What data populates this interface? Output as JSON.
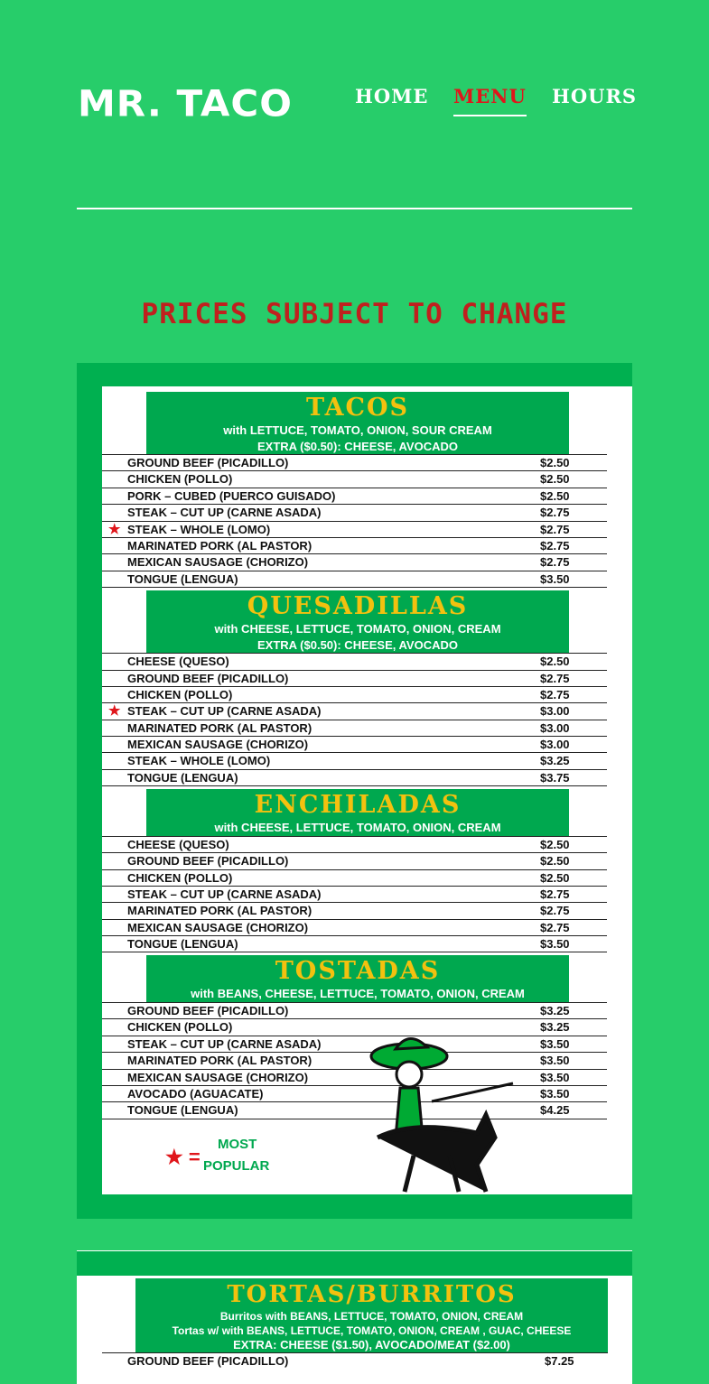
{
  "header": {
    "logo": "MR. TACO",
    "nav": [
      {
        "label": "HOME"
      },
      {
        "label": "MENU",
        "active": true
      },
      {
        "label": "HOURS"
      }
    ]
  },
  "notice": "PRICES SUBJECT TO CHANGE",
  "colors": {
    "background": "#27cd6a",
    "panel": "#00b050",
    "accent_red": "#c0201e",
    "title_yellow": "#f3c10f"
  },
  "menu": [
    {
      "title": "TACOS",
      "notes": [
        "with LETTUCE, TOMATO, ONION, SOUR CREAM",
        "EXTRA ($0.50): CHEESE, AVOCADO"
      ],
      "items": [
        {
          "name": "GROUND BEEF (PICADILLO)",
          "price": "$2.50"
        },
        {
          "name": "CHICKEN (POLLO)",
          "price": "$2.50"
        },
        {
          "name": "PORK – CUBED (PUERCO GUISADO)",
          "price": "$2.50"
        },
        {
          "name": "STEAK – CUT UP (CARNE ASADA)",
          "price": "$2.75"
        },
        {
          "name": "STEAK – WHOLE (LOMO)",
          "price": "$2.75",
          "popular": true
        },
        {
          "name": "MARINATED PORK (AL PASTOR)",
          "price": "$2.75"
        },
        {
          "name": "MEXICAN SAUSAGE (CHORIZO)",
          "price": "$2.75"
        },
        {
          "name": "TONGUE (LENGUA)",
          "price": "$3.50"
        }
      ]
    },
    {
      "title": "QUESADILLAS",
      "notes": [
        "with CHEESE, LETTUCE, TOMATO, ONION, CREAM",
        "EXTRA ($0.50): CHEESE, AVOCADO"
      ],
      "items": [
        {
          "name": "CHEESE (QUESO)",
          "price": "$2.50"
        },
        {
          "name": "GROUND BEEF (PICADILLO)",
          "price": "$2.75"
        },
        {
          "name": "CHICKEN (POLLO)",
          "price": "$2.75"
        },
        {
          "name": "STEAK – CUT UP (CARNE ASADA)",
          "price": "$3.00",
          "popular": true
        },
        {
          "name": "MARINATED PORK (AL PASTOR)",
          "price": "$3.00"
        },
        {
          "name": "MEXICAN SAUSAGE (CHORIZO)",
          "price": "$3.00"
        },
        {
          "name": "STEAK – WHOLE (LOMO)",
          "price": "$3.25"
        },
        {
          "name": "TONGUE (LENGUA)",
          "price": "$3.75"
        }
      ]
    },
    {
      "title": "ENCHILADAS",
      "notes": [
        "with CHEESE, LETTUCE, TOMATO, ONION, CREAM"
      ],
      "items": [
        {
          "name": "CHEESE (QUESO)",
          "price": "$2.50"
        },
        {
          "name": "GROUND BEEF (PICADILLO)",
          "price": "$2.50"
        },
        {
          "name": "CHICKEN (POLLO)",
          "price": "$2.50"
        },
        {
          "name": "STEAK – CUT UP (CARNE ASADA)",
          "price": "$2.75"
        },
        {
          "name": "MARINATED PORK (AL PASTOR)",
          "price": "$2.75"
        },
        {
          "name": "MEXICAN SAUSAGE (CHORIZO)",
          "price": "$2.75"
        },
        {
          "name": "TONGUE (LENGUA)",
          "price": "$3.50"
        }
      ]
    },
    {
      "title": "TOSTADAS",
      "notes": [
        "with BEANS, CHEESE, LETTUCE, TOMATO, ONION, CREAM"
      ],
      "items": [
        {
          "name": "GROUND BEEF (PICADILLO)",
          "price": "$3.25"
        },
        {
          "name": "CHICKEN (POLLO)",
          "price": "$3.25"
        },
        {
          "name": "STEAK – CUT UP (CARNE ASADA)",
          "price": "$3.50"
        },
        {
          "name": "MARINATED PORK (AL PASTOR)",
          "price": "$3.50"
        },
        {
          "name": "MEXICAN SAUSAGE (CHORIZO)",
          "price": "$3.50"
        },
        {
          "name": "AVOCADO (AGUACATE)",
          "price": "$3.50"
        },
        {
          "name": "TONGUE (LENGUA)",
          "price": "$4.25"
        }
      ]
    }
  ],
  "legend": {
    "symbol": "★ =",
    "line1": "MOST",
    "line2": "POPULAR"
  },
  "menu2": {
    "title": "TORTAS/BURRITOS",
    "notes": [
      "Burritos with BEANS, LETTUCE, TOMATO, ONION, CREAM",
      "Tortas w/ with BEANS, LETTUCE, TOMATO, ONION, CREAM , GUAC, CHEESE",
      "EXTRA: CHEESE ($1.50), AVOCADO/MEAT ($2.00)"
    ],
    "items": [
      {
        "name": "GROUND BEEF (PICADILLO)",
        "price": "$7.25"
      }
    ]
  }
}
